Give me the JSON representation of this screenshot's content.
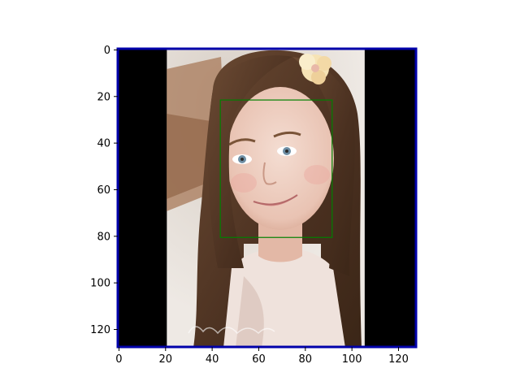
{
  "chart_data": {
    "type": "heatmap",
    "title": "",
    "xlabel": "",
    "ylabel": "",
    "xlim": [
      0,
      127
    ],
    "ylim": [
      127,
      0
    ],
    "y_axis_inverted": true,
    "grid": false,
    "x_ticks": [
      0,
      20,
      40,
      60,
      80,
      100,
      120
    ],
    "y_ticks": [
      0,
      20,
      40,
      60,
      80,
      100,
      120
    ],
    "x_tick_labels": [
      "0",
      "20",
      "40",
      "60",
      "80",
      "100",
      "120"
    ],
    "y_tick_labels": [
      "0",
      "20",
      "40",
      "60",
      "80",
      "100",
      "120"
    ],
    "image": {
      "content": "photo of a smiling girl with long brown hair and a flower hair clip, letterboxed with black bars",
      "photo_x_range": [
        20.5,
        105.5
      ],
      "letterbox_color": "#000000",
      "border_color": "#0000aa"
    },
    "annotations": [
      {
        "type": "rectangle",
        "label": "face-box",
        "x_range": [
          43.5,
          91.5
        ],
        "y_range": [
          21.5,
          80.5
        ],
        "color": "#008000"
      }
    ]
  }
}
